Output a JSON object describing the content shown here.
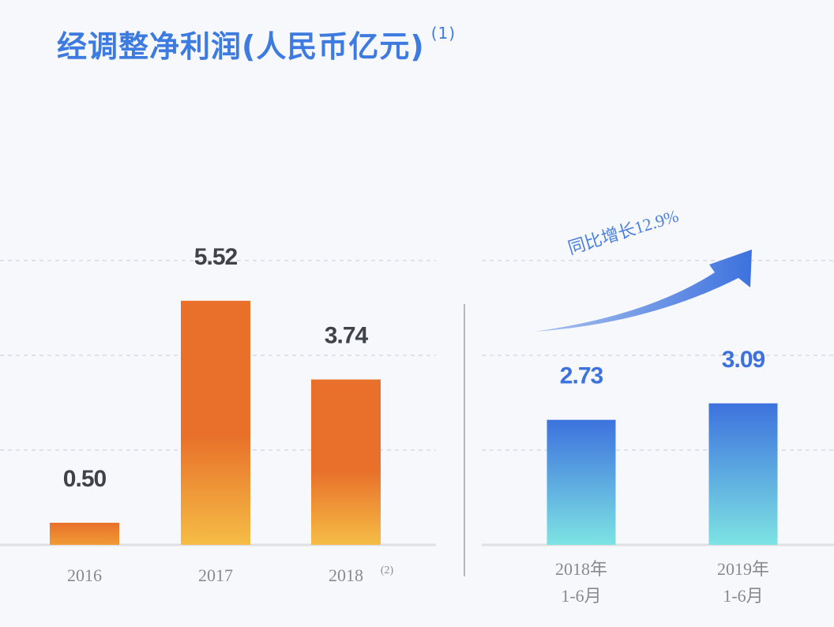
{
  "title": "经调整净利润(人民币亿元)",
  "title_note": "(1)",
  "chart_data": [
    {
      "type": "bar",
      "categories": [
        "2016",
        "2017",
        "2018"
      ],
      "category_notes": [
        "",
        "",
        "(2)"
      ],
      "values": [
        0.5,
        5.52,
        3.74
      ],
      "value_labels": [
        "0.50",
        "5.52",
        "3.74"
      ],
      "color": "#e8702a",
      "color_light": "#f5bd45",
      "label_color": "#3f4347",
      "grid": true
    },
    {
      "type": "bar",
      "categories": [
        [
          "2018年",
          "1-6月"
        ],
        [
          "2019年",
          "1-6月"
        ]
      ],
      "values": [
        2.73,
        3.09
      ],
      "value_labels": [
        "2.73",
        "3.09"
      ],
      "color": "#3d72de",
      "color_light": "#7de3e3",
      "label_color": "#3d72de",
      "annotation": "同比增长12.9%",
      "annotation_color": "#4a80dc",
      "grid": true
    }
  ]
}
